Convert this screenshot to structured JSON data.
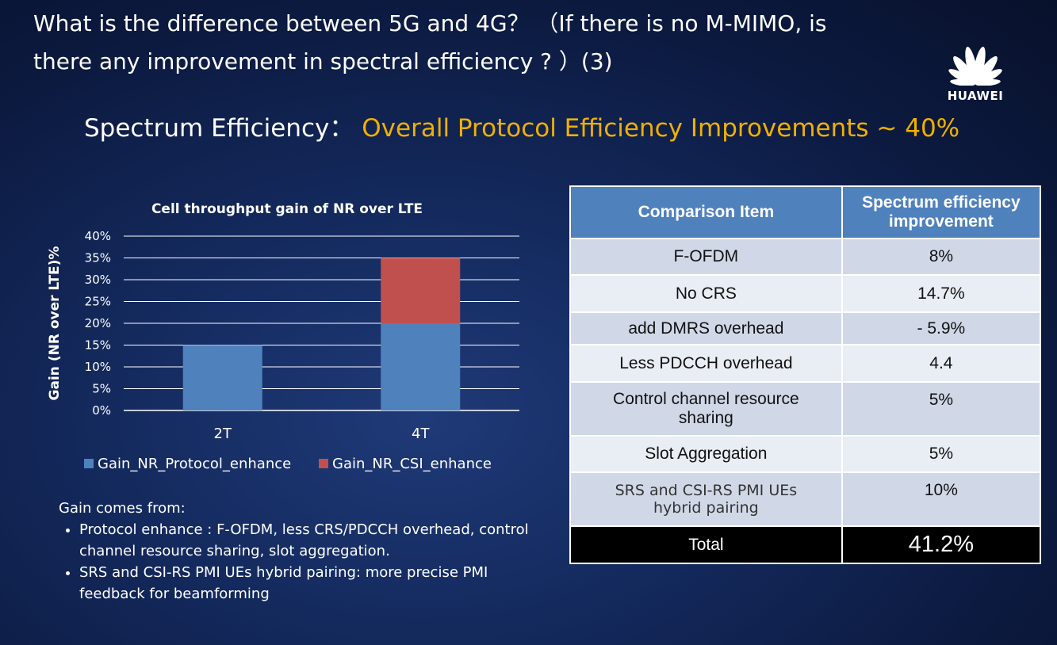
{
  "title_line1": "What is the difference between 5G and 4G？ （If there is no M-MIMO, is",
  "title_line2": "there any improvement in spectral efficiency ? ）(3)",
  "logo_text": "HUAWEI",
  "subtitle": {
    "label": "Spectrum Efficiency：",
    "highlight": "Overall Protocol Efficiency Improvements ~ 40%"
  },
  "colors": {
    "accent": "#f0b000",
    "series_protocol": "#4f81bd",
    "series_csi": "#c0504d",
    "table_header": "#4f81bd",
    "table_row_dark": "#d0d8e8",
    "table_row_light": "#e9edf4"
  },
  "chart_data": {
    "type": "bar",
    "stacked": true,
    "title": "Cell throughput gain of NR over LTE",
    "ylabel": "Gain (NR over LTE)%",
    "xlabel": "",
    "categories": [
      "2T",
      "4T"
    ],
    "series": [
      {
        "name": "Gain_NR_Protocol_enhance",
        "values": [
          15,
          20
        ]
      },
      {
        "name": "Gain_NR_CSI_enhance",
        "values": [
          0,
          15
        ]
      }
    ],
    "ylim": [
      0,
      40
    ],
    "yticks": [
      "0%",
      "5%",
      "10%",
      "15%",
      "20%",
      "25%",
      "30%",
      "35%",
      "40%"
    ],
    "grid": true,
    "legend_position": "bottom"
  },
  "gain_notes": {
    "heading": "Gain comes from:",
    "items": [
      "Protocol enhance : F-OFDM, less CRS/PDCCH overhead, control channel resource sharing, slot aggregation.",
      "SRS and CSI-RS PMI UEs hybrid pairing: more precise PMI feedback for beamforming"
    ]
  },
  "table": {
    "headers": [
      "Comparison Item",
      "Spectrum efficiency improvement"
    ],
    "rows": [
      {
        "item": "F-OFDM",
        "value": "8%"
      },
      {
        "item": "No CRS",
        "value": "14.7%"
      },
      {
        "item": "add DMRS overhead",
        "value": "- 5.9%"
      },
      {
        "item": "Less PDCCH overhead",
        "value": "4.4"
      },
      {
        "item": "Control channel resource sharing",
        "value": "5%"
      },
      {
        "item": "Slot Aggregation",
        "value": "5%"
      },
      {
        "item": "SRS and CSI-RS PMI UEs hybrid pairing",
        "value": "10%"
      }
    ],
    "total": {
      "item": "Total",
      "value": "41.2%"
    }
  }
}
